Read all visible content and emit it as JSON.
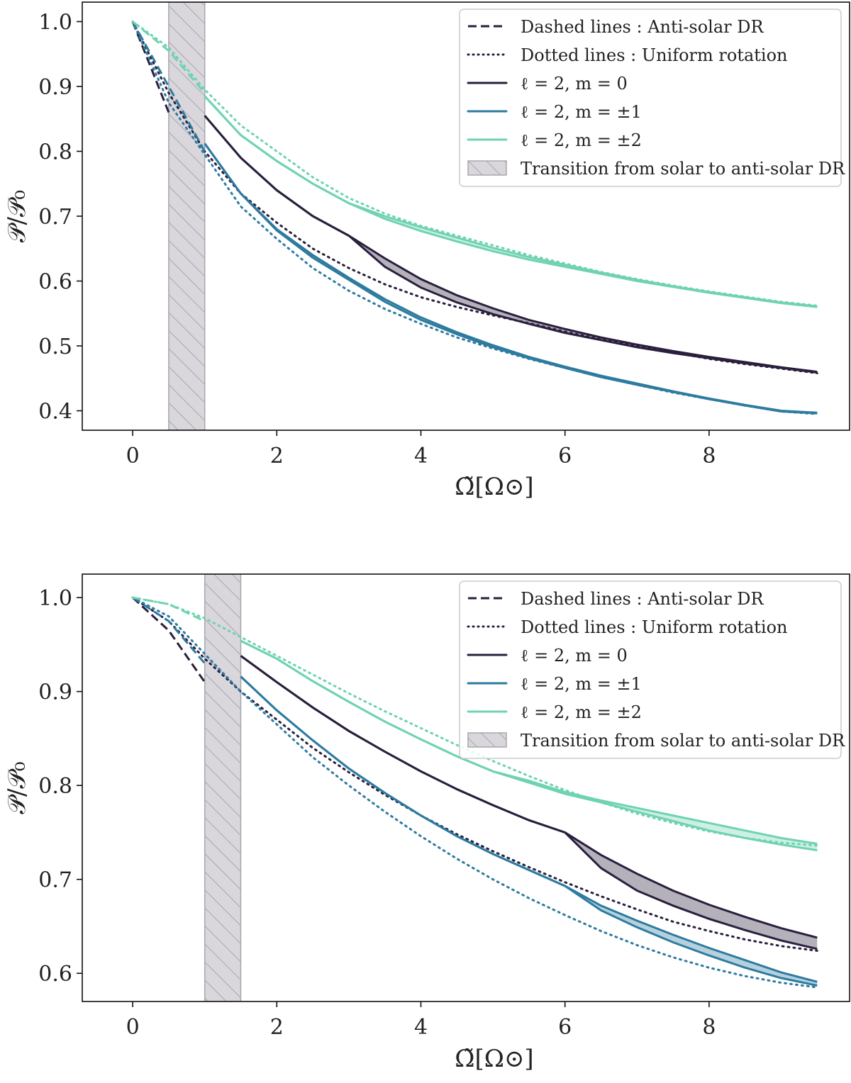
{
  "chart_data": [
    {
      "type": "line",
      "xlabel": "Ω̃[Ω⊙]",
      "ylabel": "𝒫/𝒫₀",
      "xlim": [
        -0.7,
        9.95
      ],
      "ylim": [
        0.37,
        1.03
      ],
      "xticks": [
        0,
        2,
        4,
        6,
        8
      ],
      "yticks": [
        0.4,
        0.5,
        0.6,
        0.7,
        0.8,
        0.9,
        1.0
      ],
      "xtick_labels": [
        "0",
        "2",
        "4",
        "6",
        "8"
      ],
      "ytick_labels": [
        "0.4",
        "0.5",
        "0.6",
        "0.7",
        "0.8",
        "0.9",
        "1.0"
      ],
      "transition_band": [
        0.5,
        1.0
      ],
      "legend": [
        {
          "label": "Dashed lines : Anti-solar DR",
          "style": "dashed",
          "color": "#2a1f3d"
        },
        {
          "label": "Dotted lines : Uniform rotation",
          "style": "dotted",
          "color": "#2a1f3d"
        },
        {
          "label": "ℓ = 2, m = 0",
          "style": "solid",
          "color": "#2a1f3d"
        },
        {
          "label": "ℓ = 2, m = ±1",
          "style": "solid",
          "color": "#2e7ba0"
        },
        {
          "label": "ℓ = 2, m = ±2",
          "style": "solid",
          "color": "#6fd3b0"
        },
        {
          "label": "Transition from solar to anti-solar DR",
          "style": "band",
          "color": "#c8c5cc"
        }
      ],
      "series": [
        {
          "name": "ℓ = 2, m = 0",
          "color": "#2a1f3d",
          "dashed": {
            "x": [
              0,
              0.5
            ],
            "y": [
              1.0,
              0.86
            ]
          },
          "dotted": {
            "x": [
              0,
              0.5,
              1,
              1.5,
              2,
              2.5,
              3,
              3.5,
              4,
              4.5,
              5,
              5.5,
              6,
              6.5,
              7,
              7.5,
              8,
              8.5,
              9,
              9.5
            ],
            "y": [
              1.0,
              0.89,
              0.8,
              0.735,
              0.69,
              0.65,
              0.62,
              0.595,
              0.575,
              0.56,
              0.547,
              0.535,
              0.522,
              0.51,
              0.5,
              0.49,
              0.48,
              0.472,
              0.465,
              0.458
            ]
          },
          "solid_upper": {
            "x": [
              1,
              1.5,
              2,
              2.5,
              3,
              3.5,
              4,
              4.5,
              5,
              5.5,
              6,
              6.5,
              7,
              7.5,
              8,
              8.5,
              9,
              9.5
            ],
            "y": [
              0.855,
              0.79,
              0.74,
              0.7,
              0.67,
              0.635,
              0.603,
              0.578,
              0.558,
              0.54,
              0.526,
              0.513,
              0.502,
              0.492,
              0.483,
              0.475,
              0.467,
              0.46
            ]
          },
          "solid_lower": {
            "x": [
              1,
              1.5,
              2,
              2.5,
              3,
              3.5,
              4,
              4.5,
              5,
              5.5,
              6,
              6.5,
              7,
              7.5,
              8,
              8.5,
              9,
              9.5
            ],
            "y": [
              0.855,
              0.79,
              0.74,
              0.7,
              0.67,
              0.622,
              0.59,
              0.567,
              0.549,
              0.534,
              0.52,
              0.509,
              0.498,
              0.489,
              0.481,
              0.473,
              0.466,
              0.459
            ]
          }
        },
        {
          "name": "ℓ = 2, m = ±1",
          "color": "#2e7ba0",
          "dashed": {
            "x": [
              0,
              0.5,
              1
            ],
            "y": [
              1.0,
              0.9,
              0.8
            ]
          },
          "dotted": {
            "x": [
              0,
              0.5,
              1,
              1.5,
              2,
              2.5,
              3,
              3.5,
              4,
              4.5,
              5,
              5.5,
              6,
              6.5,
              7,
              7.5,
              8,
              8.5,
              9,
              9.5
            ],
            "y": [
              1.0,
              0.875,
              0.795,
              0.715,
              0.665,
              0.62,
              0.585,
              0.557,
              0.534,
              0.513,
              0.496,
              0.48,
              0.466,
              0.452,
              0.44,
              0.428,
              0.418,
              0.408,
              0.399,
              0.395
            ]
          },
          "solid_upper": {
            "x": [
              1,
              1.5,
              2,
              2.5,
              3,
              3.5,
              4,
              4.5,
              5,
              5.5,
              6,
              6.5,
              7,
              7.5,
              8,
              8.5,
              9,
              9.5
            ],
            "y": [
              0.812,
              0.735,
              0.68,
              0.64,
              0.605,
              0.572,
              0.544,
              0.521,
              0.501,
              0.483,
              0.468,
              0.454,
              0.442,
              0.43,
              0.419,
              0.409,
              0.4,
              0.397
            ]
          },
          "solid_lower": {
            "x": [
              1,
              1.5,
              2,
              2.5,
              3,
              3.5,
              4,
              4.5,
              5,
              5.5,
              6,
              6.5,
              7,
              7.5,
              8,
              8.5,
              9,
              9.5
            ],
            "y": [
              0.812,
              0.735,
              0.678,
              0.636,
              0.602,
              0.568,
              0.54,
              0.518,
              0.498,
              0.481,
              0.466,
              0.452,
              0.44,
              0.429,
              0.418,
              0.408,
              0.399,
              0.396
            ]
          }
        },
        {
          "name": "ℓ = 2, m = ±2",
          "color": "#6fd3b0",
          "dashed": {
            "x": [
              0,
              0.5,
              1
            ],
            "y": [
              1.0,
              0.955,
              0.89
            ]
          },
          "dotted": {
            "x": [
              0,
              0.5,
              1,
              1.5,
              2,
              2.5,
              3,
              3.5,
              4,
              4.5,
              5,
              5.5,
              6,
              6.5,
              7,
              7.5,
              8,
              8.5,
              9,
              9.5
            ],
            "y": [
              1.0,
              0.96,
              0.895,
              0.84,
              0.8,
              0.76,
              0.728,
              0.704,
              0.685,
              0.67,
              0.655,
              0.64,
              0.627,
              0.614,
              0.603,
              0.593,
              0.584,
              0.576,
              0.568,
              0.562
            ]
          },
          "solid_upper": {
            "x": [
              1,
              1.5,
              2,
              2.5,
              3,
              3.5,
              4,
              4.5,
              5,
              5.5,
              6,
              6.5,
              7,
              7.5,
              8,
              8.5,
              9,
              9.5
            ],
            "y": [
              0.885,
              0.825,
              0.785,
              0.75,
              0.72,
              0.7,
              0.683,
              0.667,
              0.651,
              0.637,
              0.625,
              0.613,
              0.602,
              0.592,
              0.583,
              0.575,
              0.567,
              0.561
            ]
          },
          "solid_lower": {
            "x": [
              1,
              1.5,
              2,
              2.5,
              3,
              3.5,
              4,
              4.5,
              5,
              5.5,
              6,
              6.5,
              7,
              7.5,
              8,
              8.5,
              9,
              9.5
            ],
            "y": [
              0.885,
              0.825,
              0.785,
              0.75,
              0.72,
              0.696,
              0.677,
              0.661,
              0.646,
              0.633,
              0.622,
              0.611,
              0.6,
              0.591,
              0.582,
              0.574,
              0.566,
              0.56
            ]
          }
        }
      ]
    },
    {
      "type": "line",
      "xlabel": "Ω̃[Ω⊙]",
      "ylabel": "𝒫/𝒫₀",
      "xlim": [
        -0.7,
        9.95
      ],
      "ylim": [
        0.57,
        1.025
      ],
      "xticks": [
        0,
        2,
        4,
        6,
        8
      ],
      "yticks": [
        0.6,
        0.7,
        0.8,
        0.9,
        1.0
      ],
      "xtick_labels": [
        "0",
        "2",
        "4",
        "6",
        "8"
      ],
      "ytick_labels": [
        "0.6",
        "0.7",
        "0.8",
        "0.9",
        "1.0"
      ],
      "transition_band": [
        1.0,
        1.5
      ],
      "legend": [
        {
          "label": "Dashed lines : Anti-solar DR",
          "style": "dashed",
          "color": "#2a1f3d"
        },
        {
          "label": "Dotted lines : Uniform rotation",
          "style": "dotted",
          "color": "#2a1f3d"
        },
        {
          "label": "ℓ = 2, m = 0",
          "style": "solid",
          "color": "#2a1f3d"
        },
        {
          "label": "ℓ = 2, m = ±1",
          "style": "solid",
          "color": "#2e7ba0"
        },
        {
          "label": "ℓ = 2, m = ±2",
          "style": "solid",
          "color": "#6fd3b0"
        },
        {
          "label": "Transition from solar to anti-solar DR",
          "style": "band",
          "color": "#c8c5cc"
        }
      ],
      "series": [
        {
          "name": "ℓ = 2, m = 0",
          "color": "#2a1f3d",
          "dashed": {
            "x": [
              0,
              0.5,
              1
            ],
            "y": [
              1.0,
              0.965,
              0.91
            ]
          },
          "dotted": {
            "x": [
              0,
              0.5,
              1,
              1.5,
              2,
              2.5,
              3,
              3.5,
              4,
              4.5,
              5,
              5.5,
              6,
              6.5,
              7,
              7.5,
              8,
              8.5,
              9,
              9.5
            ],
            "y": [
              1.0,
              0.975,
              0.935,
              0.9,
              0.87,
              0.84,
              0.814,
              0.79,
              0.768,
              0.748,
              0.73,
              0.713,
              0.697,
              0.682,
              0.668,
              0.655,
              0.645,
              0.636,
              0.629,
              0.624
            ]
          },
          "solid_upper": {
            "x": [
              1.5,
              2,
              2.5,
              3,
              3.5,
              4,
              4.5,
              5,
              5.5,
              6,
              6.5,
              7,
              7.5,
              8,
              8.5,
              9,
              9.5
            ],
            "y": [
              0.938,
              0.91,
              0.883,
              0.858,
              0.836,
              0.815,
              0.796,
              0.779,
              0.763,
              0.75,
              0.726,
              0.706,
              0.688,
              0.673,
              0.66,
              0.648,
              0.638
            ]
          },
          "solid_lower": {
            "x": [
              1.5,
              2,
              2.5,
              3,
              3.5,
              4,
              4.5,
              5,
              5.5,
              6,
              6.5,
              7,
              7.5,
              8,
              8.5,
              9,
              9.5
            ],
            "y": [
              0.938,
              0.91,
              0.883,
              0.858,
              0.836,
              0.815,
              0.796,
              0.779,
              0.763,
              0.75,
              0.712,
              0.688,
              0.672,
              0.658,
              0.646,
              0.635,
              0.626
            ]
          }
        },
        {
          "name": "ℓ = 2, m = ±1",
          "color": "#2e7ba0",
          "dashed": {
            "x": [
              0,
              0.5,
              1
            ],
            "y": [
              1.0,
              0.975,
              0.93
            ]
          },
          "dotted": {
            "x": [
              0,
              0.5,
              1,
              1.5,
              2,
              2.5,
              3,
              3.5,
              4,
              4.5,
              5,
              5.5,
              6,
              6.5,
              7,
              7.5,
              8,
              8.5,
              9,
              9.5
            ],
            "y": [
              1.0,
              0.98,
              0.94,
              0.9,
              0.865,
              0.83,
              0.8,
              0.772,
              0.746,
              0.722,
              0.7,
              0.68,
              0.662,
              0.645,
              0.63,
              0.617,
              0.606,
              0.597,
              0.59,
              0.585
            ]
          },
          "solid_upper": {
            "x": [
              1.5,
              2,
              2.5,
              3,
              3.5,
              4,
              4.5,
              5,
              5.5,
              6,
              6.5,
              7,
              7.5,
              8,
              8.5,
              9,
              9.5
            ],
            "y": [
              0.916,
              0.88,
              0.848,
              0.818,
              0.792,
              0.768,
              0.746,
              0.727,
              0.71,
              0.693,
              0.672,
              0.656,
              0.641,
              0.627,
              0.614,
              0.601,
              0.591
            ]
          },
          "solid_lower": {
            "x": [
              1.5,
              2,
              2.5,
              3,
              3.5,
              4,
              4.5,
              5,
              5.5,
              6,
              6.5,
              7,
              7.5,
              8,
              8.5,
              9,
              9.5
            ],
            "y": [
              0.916,
              0.88,
              0.848,
              0.818,
              0.792,
              0.768,
              0.746,
              0.727,
              0.71,
              0.693,
              0.667,
              0.649,
              0.633,
              0.619,
              0.606,
              0.595,
              0.587
            ]
          }
        },
        {
          "name": "ℓ = 2, m = ±2",
          "color": "#6fd3b0",
          "dashed": {
            "x": [
              0,
              0.5,
              1
            ],
            "y": [
              1.0,
              0.993,
              0.975
            ]
          },
          "dotted": {
            "x": [
              0,
              0.5,
              1,
              1.5,
              2,
              2.5,
              3,
              3.5,
              4,
              4.5,
              5,
              5.5,
              6,
              6.5,
              7,
              7.5,
              8,
              8.5,
              9,
              9.5
            ],
            "y": [
              1.0,
              0.993,
              0.978,
              0.958,
              0.938,
              0.918,
              0.898,
              0.879,
              0.861,
              0.843,
              0.826,
              0.81,
              0.795,
              0.782,
              0.77,
              0.76,
              0.751,
              0.744,
              0.739,
              0.736
            ]
          },
          "solid_upper": {
            "x": [
              1.5,
              2,
              2.5,
              3,
              3.5,
              4,
              4.5,
              5,
              5.5,
              6,
              6.5,
              7,
              7.5,
              8,
              8.5,
              9,
              9.5
            ],
            "y": [
              0.954,
              0.935,
              0.911,
              0.889,
              0.868,
              0.849,
              0.831,
              0.815,
              0.805,
              0.793,
              0.784,
              0.776,
              0.768,
              0.76,
              0.752,
              0.744,
              0.738
            ]
          },
          "solid_lower": {
            "x": [
              1.5,
              2,
              2.5,
              3,
              3.5,
              4,
              4.5,
              5,
              5.5,
              6,
              6.5,
              7,
              7.5,
              8,
              8.5,
              9,
              9.5
            ],
            "y": [
              0.954,
              0.935,
              0.911,
              0.889,
              0.868,
              0.849,
              0.831,
              0.815,
              0.803,
              0.791,
              0.782,
              0.772,
              0.762,
              0.752,
              0.744,
              0.737,
              0.731
            ]
          }
        }
      ]
    }
  ]
}
